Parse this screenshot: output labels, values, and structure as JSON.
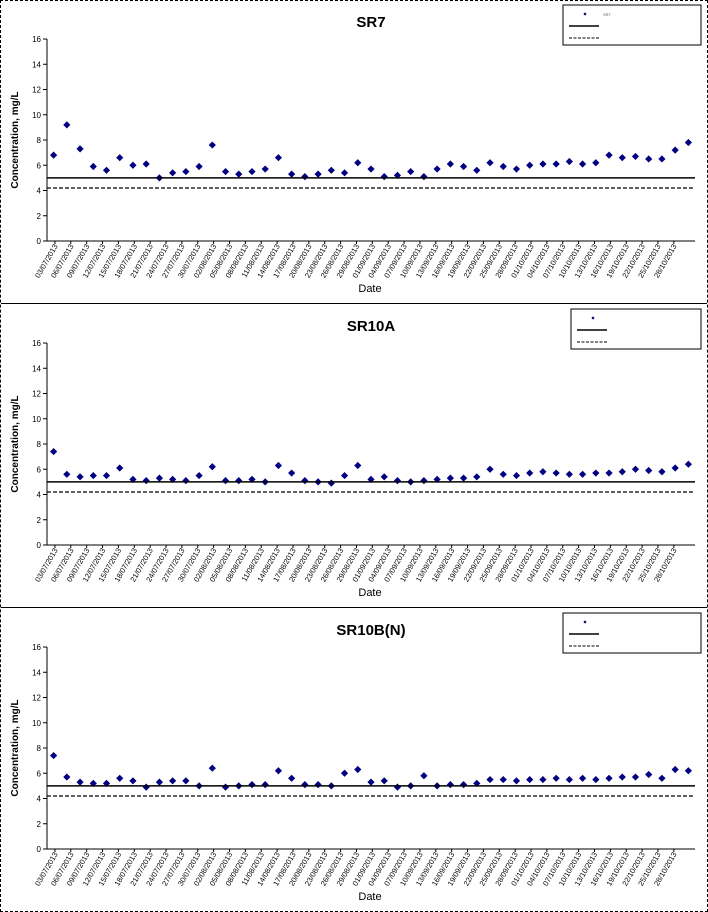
{
  "chart_data": [
    {
      "type": "scatter",
      "title": "SR7",
      "xlabel": "Date",
      "ylabel": "Concentration, mg/L",
      "ylim": [
        0,
        16
      ],
      "yticks": [
        0,
        2,
        4,
        6,
        8,
        10,
        12,
        14,
        16
      ],
      "grid": false,
      "legend_placement": "top-right",
      "legend": [
        "SR7",
        "",
        ""
      ],
      "xticks": [
        "03/07/2013",
        "06/07/2013",
        "09/07/2013",
        "12/07/2013",
        "15/07/2013",
        "18/07/2013",
        "21/07/2013",
        "24/07/2013",
        "27/07/2013",
        "30/07/2013",
        "02/08/2013",
        "05/08/2013",
        "08/08/2013",
        "11/08/2013",
        "14/08/2013",
        "17/08/2013",
        "20/08/2013",
        "23/08/2013",
        "26/08/2013",
        "29/08/2013",
        "01/09/2013",
        "04/09/2013",
        "07/09/2013",
        "10/09/2013",
        "13/09/2013",
        "16/09/2013",
        "19/09/2013",
        "22/09/2013",
        "25/09/2013",
        "28/09/2013",
        "01/10/2013",
        "04/10/2013",
        "07/10/2013",
        "10/10/2013",
        "13/10/2013",
        "16/10/2013",
        "19/10/2013",
        "22/10/2013",
        "25/10/2013",
        "28/10/2013"
      ],
      "series": [
        {
          "type": "scatter",
          "color": "#000080",
          "marker": "diamond",
          "points": [
            [
              0,
              6.8
            ],
            [
              1,
              9.2
            ],
            [
              2,
              7.3
            ],
            [
              3,
              5.9
            ],
            [
              4,
              5.6
            ],
            [
              5,
              6.6
            ],
            [
              6,
              6.0
            ],
            [
              7,
              6.1
            ],
            [
              8,
              5.0
            ],
            [
              9,
              5.4
            ],
            [
              10,
              5.5
            ],
            [
              11,
              5.9
            ],
            [
              12,
              7.6
            ],
            [
              13,
              5.5
            ],
            [
              14,
              5.3
            ],
            [
              15,
              5.5
            ],
            [
              16,
              5.7
            ],
            [
              17,
              6.6
            ],
            [
              18,
              5.3
            ],
            [
              19,
              5.1
            ],
            [
              20,
              5.3
            ],
            [
              21,
              5.6
            ],
            [
              22,
              5.4
            ],
            [
              23,
              6.2
            ],
            [
              24,
              5.7
            ],
            [
              25,
              5.1
            ],
            [
              26,
              5.2
            ],
            [
              27,
              5.5
            ],
            [
              28,
              5.1
            ],
            [
              29,
              5.7
            ],
            [
              30,
              6.1
            ],
            [
              31,
              5.9
            ],
            [
              32,
              5.6
            ],
            [
              33,
              6.2
            ],
            [
              34,
              5.9
            ],
            [
              35,
              5.7
            ],
            [
              36,
              6.0
            ],
            [
              37,
              6.1
            ],
            [
              38,
              6.1
            ],
            [
              39,
              6.3
            ],
            [
              40,
              6.1
            ],
            [
              41,
              6.2
            ],
            [
              42,
              6.8
            ],
            [
              43,
              6.6
            ],
            [
              44,
              6.7
            ],
            [
              45,
              6.5
            ],
            [
              46,
              6.5
            ],
            [
              47,
              7.2
            ],
            [
              48,
              7.8
            ]
          ]
        },
        {
          "type": "line",
          "color": "#000000",
          "dash": "solid",
          "value": 5.0
        },
        {
          "type": "line",
          "color": "#000000",
          "dash": "dashed",
          "value": 4.2
        }
      ]
    },
    {
      "type": "scatter",
      "title": "SR10A",
      "xlabel": "Date",
      "ylabel": "Concentration, mg/L",
      "ylim": [
        0,
        16
      ],
      "yticks": [
        0,
        2,
        4,
        6,
        8,
        10,
        12,
        14,
        16
      ],
      "grid": false,
      "legend_placement": "top-right",
      "legend": [
        "",
        "",
        ""
      ],
      "xticks": [
        "03/07/2013",
        "06/07/2013",
        "09/07/2013",
        "12/07/2013",
        "15/07/2013",
        "18/07/2013",
        "21/07/2013",
        "24/07/2013",
        "27/07/2013",
        "30/07/2013",
        "02/08/2013",
        "05/08/2013",
        "08/08/2013",
        "11/08/2013",
        "14/08/2013",
        "17/08/2013",
        "20/08/2013",
        "23/08/2013",
        "26/08/2013",
        "29/08/2013",
        "01/09/2013",
        "04/09/2013",
        "07/09/2013",
        "10/09/2013",
        "13/09/2013",
        "16/09/2013",
        "19/09/2013",
        "22/09/2013",
        "25/09/2013",
        "28/09/2013",
        "01/10/2013",
        "04/10/2013",
        "07/10/2013",
        "10/10/2013",
        "13/10/2013",
        "16/10/2013",
        "19/10/2013",
        "22/10/2013",
        "25/10/2013",
        "28/10/2013"
      ],
      "series": [
        {
          "type": "scatter",
          "color": "#000080",
          "marker": "diamond",
          "points": [
            [
              0,
              7.4
            ],
            [
              1,
              5.6
            ],
            [
              2,
              5.4
            ],
            [
              3,
              5.5
            ],
            [
              4,
              5.5
            ],
            [
              5,
              6.1
            ],
            [
              6,
              5.2
            ],
            [
              7,
              5.1
            ],
            [
              8,
              5.3
            ],
            [
              9,
              5.2
            ],
            [
              10,
              5.1
            ],
            [
              11,
              5.5
            ],
            [
              12,
              6.2
            ],
            [
              13,
              5.1
            ],
            [
              14,
              5.1
            ],
            [
              15,
              5.2
            ],
            [
              16,
              5.0
            ],
            [
              17,
              6.3
            ],
            [
              18,
              5.7
            ],
            [
              19,
              5.1
            ],
            [
              20,
              5.0
            ],
            [
              21,
              4.9
            ],
            [
              22,
              5.5
            ],
            [
              23,
              6.3
            ],
            [
              24,
              5.2
            ],
            [
              25,
              5.4
            ],
            [
              26,
              5.1
            ],
            [
              27,
              5.0
            ],
            [
              28,
              5.1
            ],
            [
              29,
              5.2
            ],
            [
              30,
              5.3
            ],
            [
              31,
              5.3
            ],
            [
              32,
              5.4
            ],
            [
              33,
              6.0
            ],
            [
              34,
              5.6
            ],
            [
              35,
              5.5
            ],
            [
              36,
              5.7
            ],
            [
              37,
              5.8
            ],
            [
              38,
              5.7
            ],
            [
              39,
              5.6
            ],
            [
              40,
              5.6
            ],
            [
              41,
              5.7
            ],
            [
              42,
              5.7
            ],
            [
              43,
              5.8
            ],
            [
              44,
              6.0
            ],
            [
              45,
              5.9
            ],
            [
              46,
              5.8
            ],
            [
              47,
              6.1
            ],
            [
              48,
              6.4
            ]
          ]
        },
        {
          "type": "line",
          "color": "#000000",
          "dash": "solid",
          "value": 5.0
        },
        {
          "type": "line",
          "color": "#000000",
          "dash": "dashed",
          "value": 4.2
        }
      ]
    },
    {
      "type": "scatter",
      "title": "SR10B(N)",
      "xlabel": "Date",
      "ylabel": "Concentration, mg/L",
      "ylim": [
        0,
        16
      ],
      "yticks": [
        0,
        2,
        4,
        6,
        8,
        10,
        12,
        14,
        16
      ],
      "grid": false,
      "legend_placement": "top-right",
      "legend": [
        "",
        "",
        ""
      ],
      "xticks": [
        "03/07/2013",
        "06/07/2013",
        "09/07/2013",
        "12/07/2013",
        "15/07/2013",
        "18/07/2013",
        "21/07/2013",
        "24/07/2013",
        "27/07/2013",
        "30/07/2013",
        "02/08/2013",
        "05/08/2013",
        "08/08/2013",
        "11/08/2013",
        "14/08/2013",
        "17/08/2013",
        "20/08/2013",
        "23/08/2013",
        "26/08/2013",
        "29/08/2013",
        "01/09/2013",
        "04/09/2013",
        "07/09/2013",
        "10/09/2013",
        "13/09/2013",
        "16/09/2013",
        "19/09/2013",
        "22/09/2013",
        "25/09/2013",
        "28/09/2013",
        "01/10/2013",
        "04/10/2013",
        "07/10/2013",
        "10/10/2013",
        "13/10/2013",
        "16/10/2013",
        "19/10/2013",
        "22/10/2013",
        "25/10/2013",
        "28/10/2013"
      ],
      "series": [
        {
          "type": "scatter",
          "color": "#000080",
          "marker": "diamond",
          "points": [
            [
              0,
              7.4
            ],
            [
              1,
              5.7
            ],
            [
              2,
              5.3
            ],
            [
              3,
              5.2
            ],
            [
              4,
              5.2
            ],
            [
              5,
              5.6
            ],
            [
              6,
              5.4
            ],
            [
              7,
              4.9
            ],
            [
              8,
              5.3
            ],
            [
              9,
              5.4
            ],
            [
              10,
              5.4
            ],
            [
              11,
              5.0
            ],
            [
              12,
              6.4
            ],
            [
              13,
              4.9
            ],
            [
              14,
              5.0
            ],
            [
              15,
              5.1
            ],
            [
              16,
              5.1
            ],
            [
              17,
              6.2
            ],
            [
              18,
              5.6
            ],
            [
              19,
              5.1
            ],
            [
              20,
              5.1
            ],
            [
              21,
              5.0
            ],
            [
              22,
              6.0
            ],
            [
              23,
              6.3
            ],
            [
              24,
              5.3
            ],
            [
              25,
              5.4
            ],
            [
              26,
              4.9
            ],
            [
              27,
              5.0
            ],
            [
              28,
              5.8
            ],
            [
              29,
              5.0
            ],
            [
              30,
              5.1
            ],
            [
              31,
              5.1
            ],
            [
              32,
              5.2
            ],
            [
              33,
              5.5
            ],
            [
              34,
              5.5
            ],
            [
              35,
              5.4
            ],
            [
              36,
              5.5
            ],
            [
              37,
              5.5
            ],
            [
              38,
              5.6
            ],
            [
              39,
              5.5
            ],
            [
              40,
              5.6
            ],
            [
              41,
              5.5
            ],
            [
              42,
              5.6
            ],
            [
              43,
              5.7
            ],
            [
              44,
              5.7
            ],
            [
              45,
              5.9
            ],
            [
              46,
              5.6
            ],
            [
              47,
              6.3
            ],
            [
              48,
              6.2
            ]
          ]
        },
        {
          "type": "line",
          "color": "#000000",
          "dash": "solid",
          "value": 5.0
        },
        {
          "type": "line",
          "color": "#000000",
          "dash": "dashed",
          "value": 4.2
        }
      ]
    }
  ]
}
